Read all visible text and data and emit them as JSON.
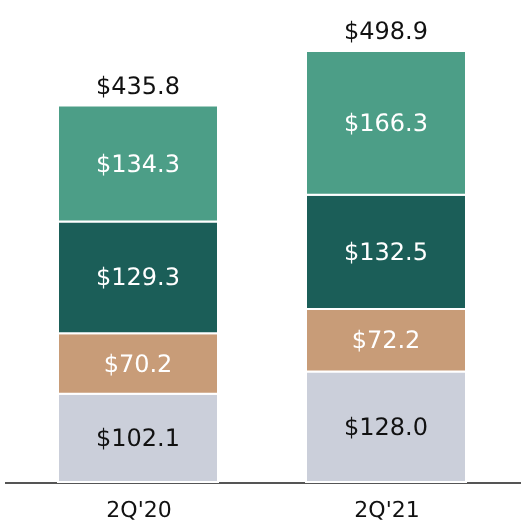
{
  "chart_data": {
    "type": "bar",
    "stacked": true,
    "data_labels": true,
    "categories": [
      "2Q'20",
      "2Q'21"
    ],
    "series": [
      {
        "color": "#cbcfda",
        "values": [
          102.1,
          128.0
        ],
        "value_labels": [
          "$102.1",
          "$128.0"
        ]
      },
      {
        "color": "#c89c78",
        "values": [
          70.2,
          72.2
        ],
        "value_labels": [
          "$70.2",
          "$72.2"
        ]
      },
      {
        "color": "#1b5e58",
        "values": [
          129.3,
          132.5
        ],
        "value_labels": [
          "$129.3",
          "$132.5"
        ]
      },
      {
        "color": "#4c9e87",
        "values": [
          134.3,
          166.3
        ],
        "value_labels": [
          "$134.3",
          "$166.3"
        ]
      }
    ],
    "totals": [
      "$435.8",
      "$498.9"
    ],
    "grid": false
  }
}
